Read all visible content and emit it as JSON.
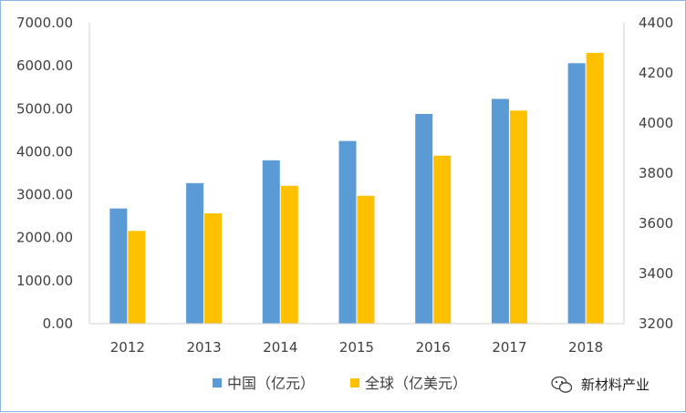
{
  "chart_data": {
    "type": "bar",
    "categories": [
      "2012",
      "2013",
      "2014",
      "2015",
      "2016",
      "2017",
      "2018"
    ],
    "series": [
      {
        "name": "中国（亿元）",
        "axis": "left",
        "color": "#5b9bd5",
        "values": [
          2680,
          3270,
          3800,
          4250,
          4880,
          5230,
          6060
        ]
      },
      {
        "name": "全球（亿美元）",
        "axis": "right",
        "color": "#ffc000",
        "values": [
          3570,
          3640,
          3750,
          3710,
          3870,
          4050,
          4280
        ]
      }
    ],
    "y_left": {
      "ylim": [
        0,
        7000
      ],
      "ticks": [
        "0.00",
        "1000.00",
        "2000.00",
        "3000.00",
        "4000.00",
        "5000.00",
        "6000.00",
        "7000.00"
      ]
    },
    "y_right": {
      "ylim": [
        3200,
        4400
      ],
      "ticks": [
        "3200",
        "3400",
        "3600",
        "3800",
        "4000",
        "4200",
        "4400"
      ]
    },
    "legend_position": "bottom-center",
    "grid": false
  },
  "watermark": {
    "text": "新材料产业",
    "icon": "wechat-icon"
  }
}
